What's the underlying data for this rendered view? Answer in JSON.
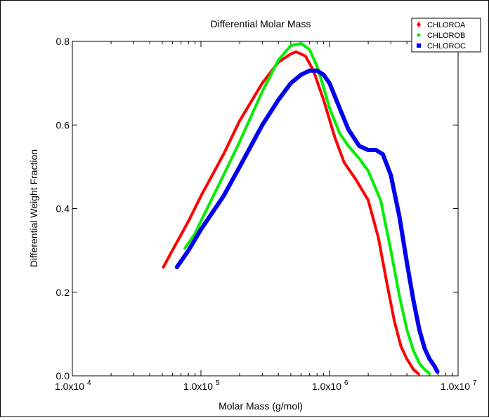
{
  "chart_data": {
    "type": "line",
    "title": "Differential Molar Mass",
    "xlabel": "Molar Mass (g/mol)",
    "ylabel": "Differential Weight Fraction",
    "x_scale": "log",
    "xlim": [
      10000,
      10000000
    ],
    "ylim": [
      0,
      0.8
    ],
    "x_ticks": [
      10000,
      100000,
      1000000,
      10000000
    ],
    "x_tick_labels": [
      "1.0x10",
      "1.0x10",
      "1.0x10",
      "1.0x10"
    ],
    "x_tick_exponents": [
      "4",
      "5",
      "6",
      "7"
    ],
    "y_ticks": [
      0,
      0.2,
      0.4,
      0.6,
      0.8
    ],
    "y_tick_labels": [
      "0.0",
      "0.2",
      "0.4",
      "0.6",
      "0.8"
    ],
    "grid": false,
    "legend_position": "top-right",
    "series": [
      {
        "name": "CHLOROA",
        "color": "#ff0000",
        "marker": "diamond",
        "x": [
          51000,
          60000,
          80000,
          100000,
          150000,
          200000,
          300000,
          400000,
          500000,
          550000,
          650000,
          750000,
          900000,
          1100000,
          1300000,
          1600000,
          2000000,
          2400000,
          2800000,
          3200000,
          3600000,
          4000000,
          4500000,
          4900000
        ],
        "y": [
          0.26,
          0.3,
          0.37,
          0.43,
          0.53,
          0.61,
          0.7,
          0.75,
          0.77,
          0.775,
          0.765,
          0.73,
          0.66,
          0.57,
          0.51,
          0.47,
          0.42,
          0.33,
          0.22,
          0.13,
          0.07,
          0.04,
          0.015,
          0.005
        ]
      },
      {
        "name": "CHLOROB",
        "color": "#00ee00",
        "marker": "dot",
        "x": [
          75000,
          90000,
          100000,
          150000,
          200000,
          300000,
          400000,
          500000,
          600000,
          700000,
          800000,
          900000,
          1000000,
          1200000,
          1400000,
          1700000,
          2000000,
          2500000,
          3000000,
          3500000,
          4000000,
          4500000,
          5000000,
          5500000,
          6000000
        ],
        "y": [
          0.305,
          0.34,
          0.37,
          0.48,
          0.56,
          0.68,
          0.755,
          0.79,
          0.795,
          0.78,
          0.74,
          0.69,
          0.64,
          0.58,
          0.55,
          0.52,
          0.49,
          0.42,
          0.3,
          0.19,
          0.11,
          0.06,
          0.03,
          0.015,
          0.005
        ]
      },
      {
        "name": "CHLOROC",
        "color": "#0000ee",
        "marker": "square",
        "x": [
          65000,
          80000,
          100000,
          150000,
          200000,
          300000,
          400000,
          500000,
          600000,
          700000,
          800000,
          900000,
          1000000,
          1200000,
          1400000,
          1700000,
          2000000,
          2300000,
          2600000,
          3000000,
          3500000,
          4000000,
          4500000,
          5000000,
          5500000,
          6000000,
          6500000,
          6900000
        ],
        "y": [
          0.26,
          0.3,
          0.35,
          0.43,
          0.5,
          0.6,
          0.66,
          0.7,
          0.72,
          0.73,
          0.73,
          0.72,
          0.7,
          0.64,
          0.59,
          0.55,
          0.54,
          0.54,
          0.53,
          0.48,
          0.38,
          0.27,
          0.18,
          0.11,
          0.065,
          0.04,
          0.025,
          0.01
        ]
      }
    ]
  }
}
